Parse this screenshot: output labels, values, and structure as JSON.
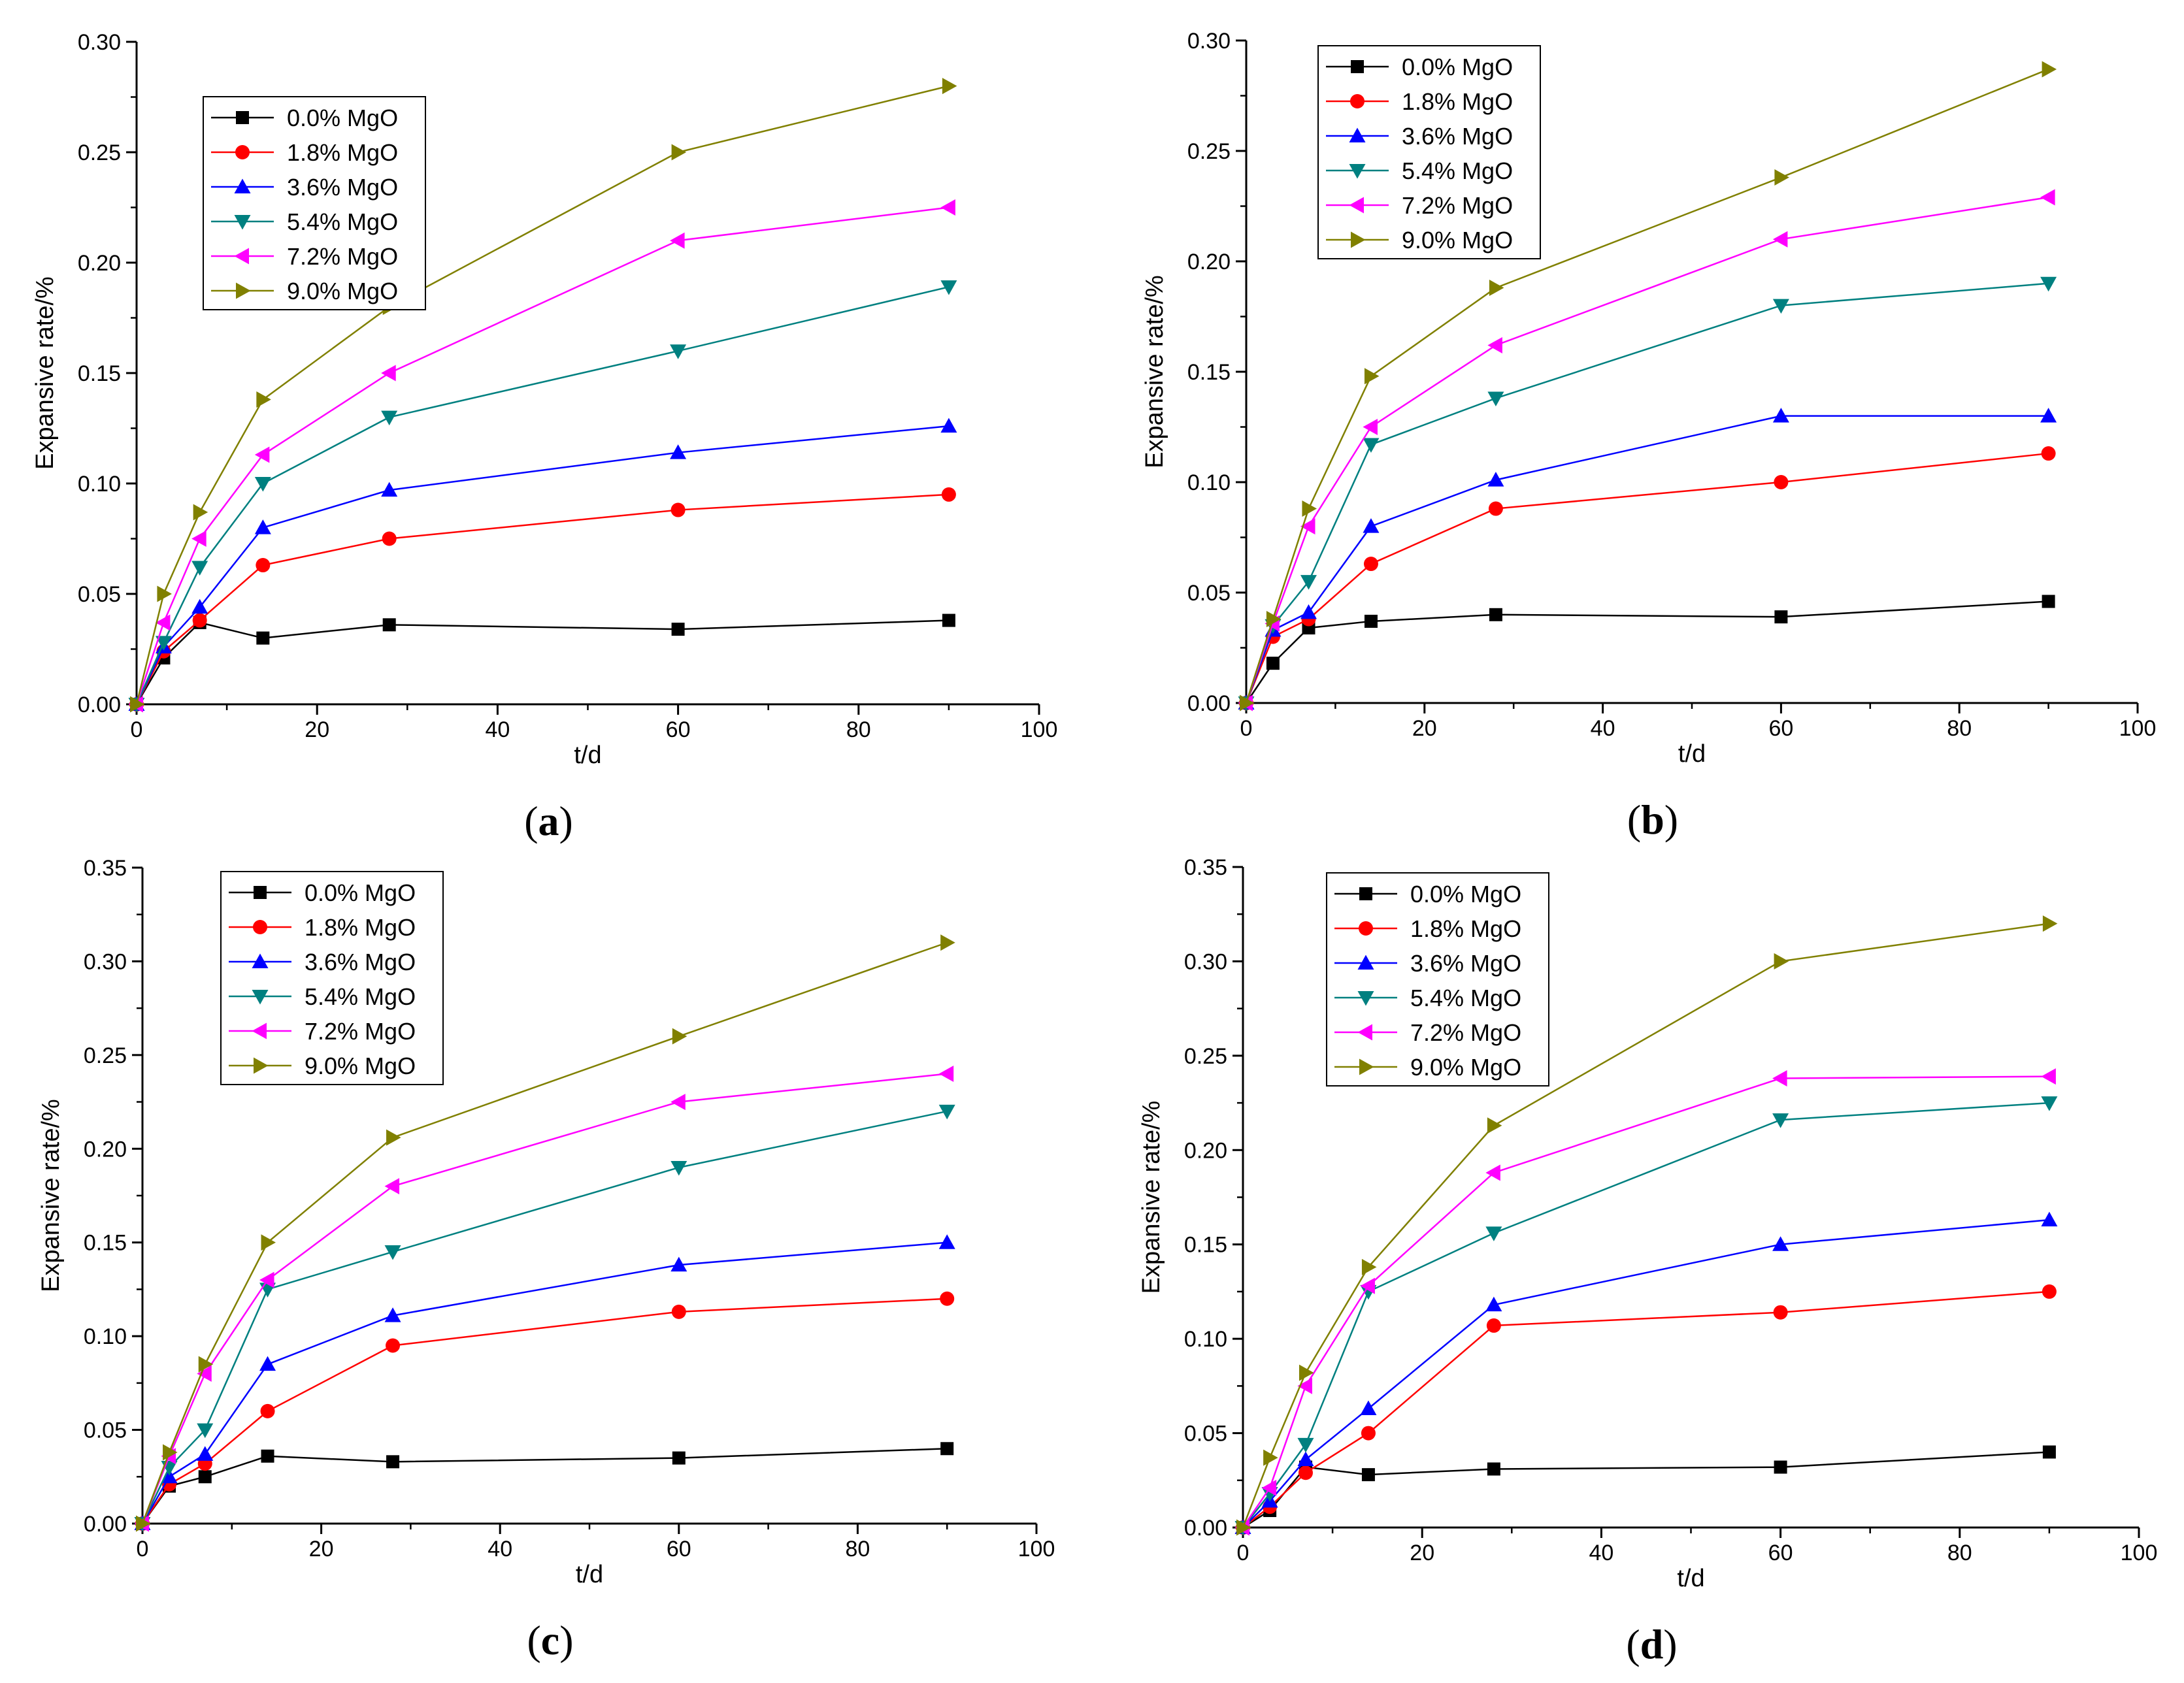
{
  "series_style": [
    {
      "color": "#000000",
      "marker": "square"
    },
    {
      "color": "#ff0000",
      "marker": "circle"
    },
    {
      "color": "#0000ff",
      "marker": "triangle-up"
    },
    {
      "color": "#008080",
      "marker": "triangle-down"
    },
    {
      "color": "#ff00ff",
      "marker": "triangle-left"
    },
    {
      "color": "#808000",
      "marker": "triangle-right"
    }
  ],
  "chart_data": [
    {
      "type": "line",
      "panel_label": "a",
      "xlabel": "t/d",
      "ylabel": "Expansive rate/%",
      "xlim": [
        0,
        100
      ],
      "ylim": [
        0,
        0.3
      ],
      "xticks": [
        "0",
        "20",
        "40",
        "60",
        "80",
        "100"
      ],
      "yticks": [
        "0.00",
        "0.05",
        "0.10",
        "0.15",
        "0.20",
        "0.25",
        "0.30"
      ],
      "legend_position": "top-left",
      "grid": false,
      "x": [
        0,
        3,
        7,
        14,
        28,
        60,
        90
      ],
      "series": [
        {
          "name": "0.0% MgO",
          "values": [
            0,
            0.021,
            0.037,
            0.03,
            0.036,
            0.034,
            0.038
          ]
        },
        {
          "name": "1.8% MgO",
          "values": [
            0,
            0.024,
            0.038,
            0.063,
            0.075,
            0.088,
            0.095
          ]
        },
        {
          "name": "3.6% MgO",
          "values": [
            0,
            0.026,
            0.044,
            0.08,
            0.097,
            0.114,
            0.126
          ]
        },
        {
          "name": "5.4% MgO",
          "values": [
            0,
            0.028,
            0.062,
            0.1,
            0.13,
            0.16,
            0.189
          ]
        },
        {
          "name": "7.2% MgO",
          "values": [
            0,
            0.037,
            0.075,
            0.113,
            0.15,
            0.21,
            0.225
          ]
        },
        {
          "name": "9.0% MgO",
          "values": [
            0,
            0.05,
            0.087,
            0.138,
            0.18,
            0.25,
            0.28
          ]
        }
      ]
    },
    {
      "type": "line",
      "panel_label": "b",
      "xlabel": "t/d",
      "ylabel": "Expansive rate/%",
      "xlim": [
        0,
        100
      ],
      "ylim": [
        0,
        0.3
      ],
      "xticks": [
        "0",
        "20",
        "40",
        "60",
        "80",
        "100"
      ],
      "yticks": [
        "0.00",
        "0.05",
        "0.10",
        "0.15",
        "0.20",
        "0.25",
        "0.30"
      ],
      "legend_position": "top-left",
      "grid": false,
      "x": [
        0,
        3,
        7,
        14,
        28,
        60,
        90
      ],
      "series": [
        {
          "name": "0.0% MgO",
          "values": [
            0,
            0.018,
            0.034,
            0.037,
            0.04,
            0.039,
            0.046
          ]
        },
        {
          "name": "1.8% MgO",
          "values": [
            0,
            0.03,
            0.038,
            0.063,
            0.088,
            0.1,
            0.113
          ]
        },
        {
          "name": "3.6% MgO",
          "values": [
            0,
            0.033,
            0.041,
            0.08,
            0.101,
            0.13,
            0.13
          ]
        },
        {
          "name": "5.4% MgO",
          "values": [
            0,
            0.035,
            0.055,
            0.117,
            0.138,
            0.18,
            0.19
          ]
        },
        {
          "name": "7.2% MgO",
          "values": [
            0,
            0.036,
            0.08,
            0.125,
            0.162,
            0.21,
            0.229
          ]
        },
        {
          "name": "9.0% MgO",
          "values": [
            0,
            0.038,
            0.088,
            0.148,
            0.188,
            0.238,
            0.287
          ]
        }
      ]
    },
    {
      "type": "line",
      "panel_label": "c",
      "xlabel": "t/d",
      "ylabel": "Expansive rate/%",
      "xlim": [
        0,
        100
      ],
      "ylim": [
        0,
        0.35
      ],
      "xticks": [
        "0",
        "20",
        "40",
        "60",
        "80",
        "100"
      ],
      "yticks": [
        "0.00",
        "0.05",
        "0.10",
        "0.15",
        "0.20",
        "0.25",
        "0.30",
        "0.35"
      ],
      "legend_position": "top-left",
      "grid": false,
      "x": [
        0,
        3,
        7,
        14,
        28,
        60,
        90
      ],
      "series": [
        {
          "name": "0.0% MgO",
          "values": [
            0,
            0.02,
            0.025,
            0.036,
            0.033,
            0.035,
            0.04
          ]
        },
        {
          "name": "1.8% MgO",
          "values": [
            0,
            0.021,
            0.032,
            0.06,
            0.095,
            0.113,
            0.12
          ]
        },
        {
          "name": "3.6% MgO",
          "values": [
            0,
            0.025,
            0.037,
            0.085,
            0.111,
            0.138,
            0.15
          ]
        },
        {
          "name": "5.4% MgO",
          "values": [
            0,
            0.03,
            0.05,
            0.125,
            0.145,
            0.19,
            0.22
          ]
        },
        {
          "name": "7.2% MgO",
          "values": [
            0,
            0.036,
            0.08,
            0.13,
            0.18,
            0.225,
            0.24
          ]
        },
        {
          "name": "9.0% MgO",
          "values": [
            0,
            0.038,
            0.085,
            0.15,
            0.206,
            0.26,
            0.31
          ]
        }
      ]
    },
    {
      "type": "line",
      "panel_label": "d",
      "xlabel": "t/d",
      "ylabel": "Expansive rate/%",
      "xlim": [
        0,
        100
      ],
      "ylim": [
        0,
        0.35
      ],
      "xticks": [
        "0",
        "20",
        "40",
        "60",
        "80",
        "100"
      ],
      "yticks": [
        "0.00",
        "0.05",
        "0.10",
        "0.15",
        "0.20",
        "0.25",
        "0.30",
        "0.35"
      ],
      "legend_position": "top-left",
      "grid": false,
      "x": [
        0,
        3,
        7,
        14,
        28,
        60,
        90
      ],
      "series": [
        {
          "name": "0.0% MgO",
          "values": [
            0,
            0.009,
            0.032,
            0.028,
            0.031,
            0.032,
            0.04
          ]
        },
        {
          "name": "1.8% MgO",
          "values": [
            0,
            0.011,
            0.029,
            0.05,
            0.107,
            0.114,
            0.125
          ]
        },
        {
          "name": "3.6% MgO",
          "values": [
            0,
            0.014,
            0.036,
            0.063,
            0.118,
            0.15,
            0.163
          ]
        },
        {
          "name": "5.4% MgO",
          "values": [
            0,
            0.018,
            0.044,
            0.125,
            0.156,
            0.216,
            0.225
          ]
        },
        {
          "name": "7.2% MgO",
          "values": [
            0,
            0.021,
            0.075,
            0.128,
            0.188,
            0.238,
            0.239
          ]
        },
        {
          "name": "9.0% MgO",
          "values": [
            0,
            0.037,
            0.082,
            0.138,
            0.213,
            0.3,
            0.32
          ]
        }
      ]
    }
  ]
}
